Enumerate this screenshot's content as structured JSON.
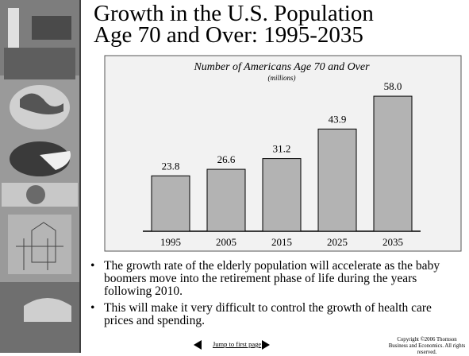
{
  "slide": {
    "title_lines": [
      "Growth in the U.S. Population",
      "Age 70 and Over: 1995-2035"
    ],
    "bullets": [
      "The growth rate of the elderly population will accelerate as the baby boomers move into the retirement phase of life during the years following 2010.",
      "This will make it very difficult to control the growth of health care prices and spending."
    ],
    "nav_link": "Jump to first page",
    "copyright": "Copyright ©2006  Thomson Business and Economics. All rights reserved."
  },
  "chart_data": {
    "type": "bar",
    "title": "Number of Americans Age 70 and Over",
    "subtitle": "(millions)",
    "categories": [
      "1995",
      "2005",
      "2015",
      "2025",
      "2035"
    ],
    "values": [
      23.8,
      26.6,
      31.2,
      43.9,
      58.0
    ],
    "value_labels": [
      "23.8",
      "26.6",
      "31.2",
      "43.9",
      "58.0"
    ],
    "color": "#b3b3b3"
  }
}
